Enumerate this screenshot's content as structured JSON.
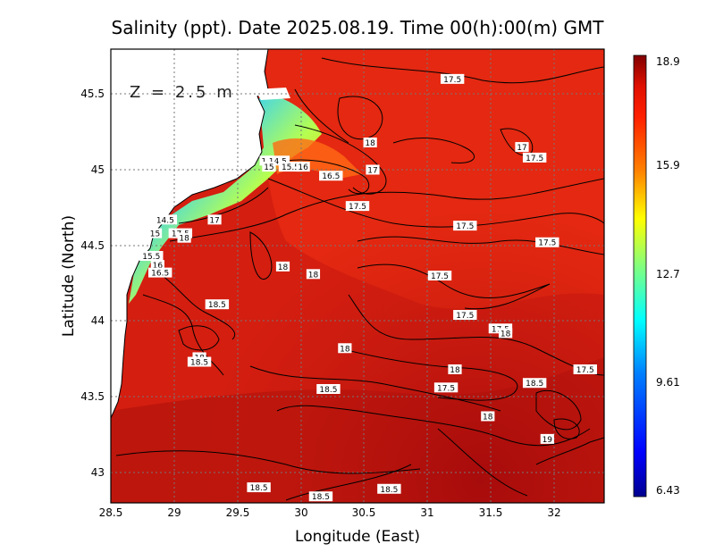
{
  "chart_data": {
    "type": "heatmap",
    "title": "Salinity (ppt). Date 2025.08.19. Time 00(h):00(m) GMT",
    "xlabel": "Longitude (East)",
    "ylabel": "Latitude (North)",
    "xlim": [
      28.5,
      32.4
    ],
    "ylim": [
      42.8,
      45.8
    ],
    "x_ticks": [
      "28.5",
      "29",
      "29.5",
      "30",
      "30.5",
      "31",
      "31.5",
      "32"
    ],
    "y_ticks": [
      "43",
      "43.5",
      "44",
      "44.5",
      "45",
      "45.5"
    ],
    "grid": true,
    "depth_label": "Z = 2.5 m",
    "colorbar": {
      "min": 6.43,
      "max": 18.9,
      "tick_labels": [
        "18.9",
        "15.9",
        "12.7",
        "9.61",
        "6.43"
      ],
      "tick_values": [
        18.9,
        15.9,
        12.7,
        9.61,
        6.43
      ],
      "colors": [
        "#00008f",
        "#0000ff",
        "#0080ff",
        "#00ffff",
        "#80ff80",
        "#ffff00",
        "#ff8000",
        "#ff2000",
        "#e01000",
        "#800000"
      ]
    },
    "contour_labels": [
      {
        "text": "17.5",
        "x": 31.2,
        "y": 45.6
      },
      {
        "text": "18",
        "x": 30.55,
        "y": 45.18
      },
      {
        "text": "17",
        "x": 31.75,
        "y": 45.15
      },
      {
        "text": "17.5",
        "x": 31.85,
        "y": 45.08
      },
      {
        "text": "14",
        "x": 29.73,
        "y": 45.06
      },
      {
        "text": "14.5",
        "x": 29.82,
        "y": 45.06
      },
      {
        "text": "15",
        "x": 29.75,
        "y": 45.02
      },
      {
        "text": "15.5",
        "x": 29.92,
        "y": 45.02
      },
      {
        "text": "16",
        "x": 30.02,
        "y": 45.02
      },
      {
        "text": "16.5",
        "x": 30.24,
        "y": 44.96
      },
      {
        "text": "17",
        "x": 30.57,
        "y": 45.0
      },
      {
        "text": "17.5",
        "x": 30.45,
        "y": 44.76
      },
      {
        "text": "14.5",
        "x": 28.93,
        "y": 44.67
      },
      {
        "text": "17",
        "x": 29.32,
        "y": 44.67
      },
      {
        "text": "15",
        "x": 28.85,
        "y": 44.58
      },
      {
        "text": "17.5",
        "x": 29.05,
        "y": 44.58
      },
      {
        "text": "18",
        "x": 29.08,
        "y": 44.55
      },
      {
        "text": "15.5",
        "x": 28.82,
        "y": 44.43
      },
      {
        "text": "16",
        "x": 28.87,
        "y": 44.37
      },
      {
        "text": "16.5",
        "x": 28.89,
        "y": 44.32
      },
      {
        "text": "18",
        "x": 29.86,
        "y": 44.36
      },
      {
        "text": "18",
        "x": 30.1,
        "y": 44.31
      },
      {
        "text": "17.5",
        "x": 31.3,
        "y": 44.63
      },
      {
        "text": "17.5",
        "x": 31.95,
        "y": 44.52
      },
      {
        "text": "17.5",
        "x": 31.1,
        "y": 44.3
      },
      {
        "text": "17.5",
        "x": 31.3,
        "y": 44.04
      },
      {
        "text": "17.5",
        "x": 31.58,
        "y": 43.95
      },
      {
        "text": "18",
        "x": 31.62,
        "y": 43.92
      },
      {
        "text": "18.5",
        "x": 29.34,
        "y": 44.11
      },
      {
        "text": "18",
        "x": 29.2,
        "y": 43.76
      },
      {
        "text": "18.5",
        "x": 29.2,
        "y": 43.73
      },
      {
        "text": "18",
        "x": 30.35,
        "y": 43.82
      },
      {
        "text": "18",
        "x": 31.22,
        "y": 43.68
      },
      {
        "text": "17.5",
        "x": 32.25,
        "y": 43.68
      },
      {
        "text": "18.5",
        "x": 31.85,
        "y": 43.59
      },
      {
        "text": "17.5",
        "x": 31.15,
        "y": 43.56
      },
      {
        "text": "18.5",
        "x": 30.22,
        "y": 43.55
      },
      {
        "text": "18",
        "x": 31.48,
        "y": 43.37
      },
      {
        "text": "19",
        "x": 31.95,
        "y": 43.22
      },
      {
        "text": "18.5",
        "x": 29.67,
        "y": 42.9
      },
      {
        "text": "18.5",
        "x": 30.16,
        "y": 42.84
      },
      {
        "text": "18.5",
        "x": 30.7,
        "y": 42.89
      }
    ]
  }
}
